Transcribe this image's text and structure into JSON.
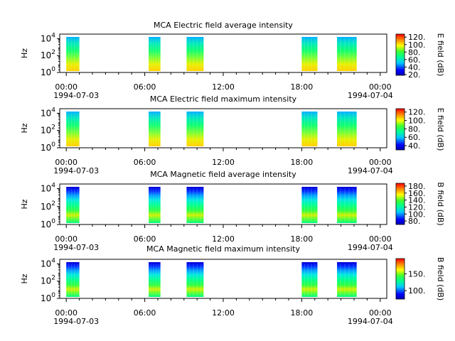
{
  "chart_data": [
    {
      "type": "heatmap",
      "title": "MCA  Electric field average intensity",
      "ylabel": "Hz",
      "colorbar_label": "E field (dB)",
      "colorbar_range": [
        18,
        128
      ],
      "colorbar_ticks": [
        "20.",
        "40.",
        "60.",
        "80.",
        "100.",
        "120."
      ],
      "colorbar_tick_values": [
        20,
        40,
        60,
        80,
        100,
        120
      ],
      "y_ticks": [
        {
          "base": "10",
          "exp": "0"
        },
        {
          "base": "10",
          "exp": "2"
        },
        {
          "base": "10",
          "exp": "4"
        }
      ],
      "xlim_hours": [
        -0.5,
        24.5
      ],
      "x_ticks": [
        "00:00",
        "06:00",
        "12:00",
        "18:00",
        "00:00"
      ],
      "x_dates": [
        "1994-07-03",
        "1994-07-04"
      ],
      "data_intervals_hours": [
        [
          0.0,
          1.0
        ],
        [
          6.3,
          7.2
        ],
        [
          9.2,
          10.5
        ],
        [
          18.0,
          19.2
        ],
        [
          20.7,
          22.2
        ]
      ]
    },
    {
      "type": "heatmap",
      "title": "MCA  Electric field maximum intensity",
      "ylabel": "Hz",
      "colorbar_label": "E field (dB)",
      "colorbar_range": [
        30,
        128
      ],
      "colorbar_ticks": [
        "40.",
        "60.",
        "80.",
        "100.",
        "120."
      ],
      "colorbar_tick_values": [
        40,
        60,
        80,
        100,
        120
      ],
      "y_ticks": [
        {
          "base": "10",
          "exp": "0"
        },
        {
          "base": "10",
          "exp": "2"
        },
        {
          "base": "10",
          "exp": "4"
        }
      ],
      "xlim_hours": [
        -0.5,
        24.5
      ],
      "x_ticks": [
        "00:00",
        "06:00",
        "12:00",
        "18:00",
        "00:00"
      ],
      "x_dates": [
        "1994-07-03",
        "1994-07-04"
      ],
      "data_intervals_hours": [
        [
          0.0,
          1.0
        ],
        [
          6.3,
          7.2
        ],
        [
          9.2,
          10.5
        ],
        [
          18.0,
          19.2
        ],
        [
          20.7,
          22.2
        ]
      ]
    },
    {
      "type": "heatmap",
      "title": "MCA  Magnetic field average intensity",
      "ylabel": "Hz",
      "colorbar_label": "B field (dB)",
      "colorbar_range": [
        70,
        188
      ],
      "colorbar_ticks": [
        "80.",
        "100.",
        "120.",
        "140.",
        "160.",
        "180."
      ],
      "colorbar_tick_values": [
        80,
        100,
        120,
        140,
        160,
        180
      ],
      "y_ticks": [
        {
          "base": "10",
          "exp": "0"
        },
        {
          "base": "10",
          "exp": "2"
        },
        {
          "base": "10",
          "exp": "4"
        }
      ],
      "xlim_hours": [
        -0.5,
        24.5
      ],
      "x_ticks": [
        "00:00",
        "06:00",
        "12:00",
        "18:00",
        "00:00"
      ],
      "x_dates": [
        "1994-07-03",
        "1994-07-04"
      ],
      "data_intervals_hours": [
        [
          0.0,
          1.0
        ],
        [
          6.3,
          7.2
        ],
        [
          9.2,
          10.5
        ],
        [
          18.0,
          19.2
        ],
        [
          20.7,
          22.2
        ]
      ]
    },
    {
      "type": "heatmap",
      "title": "MCA  Magnetic field maximum intensity",
      "ylabel": "Hz",
      "colorbar_label": "B field (dB)",
      "colorbar_range": [
        75,
        195
      ],
      "colorbar_ticks": [
        "100.",
        "150."
      ],
      "colorbar_tick_values": [
        100,
        150
      ],
      "y_ticks": [
        {
          "base": "10",
          "exp": "0"
        },
        {
          "base": "10",
          "exp": "2"
        },
        {
          "base": "10",
          "exp": "4"
        }
      ],
      "xlim_hours": [
        -0.5,
        24.5
      ],
      "x_ticks": [
        "00:00",
        "06:00",
        "12:00",
        "18:00",
        "00:00"
      ],
      "x_dates": [
        "1994-07-03",
        "1994-07-04"
      ],
      "data_intervals_hours": [
        [
          0.0,
          1.0
        ],
        [
          6.3,
          7.2
        ],
        [
          9.2,
          10.5
        ],
        [
          18.0,
          19.2
        ],
        [
          20.7,
          22.2
        ]
      ]
    }
  ]
}
